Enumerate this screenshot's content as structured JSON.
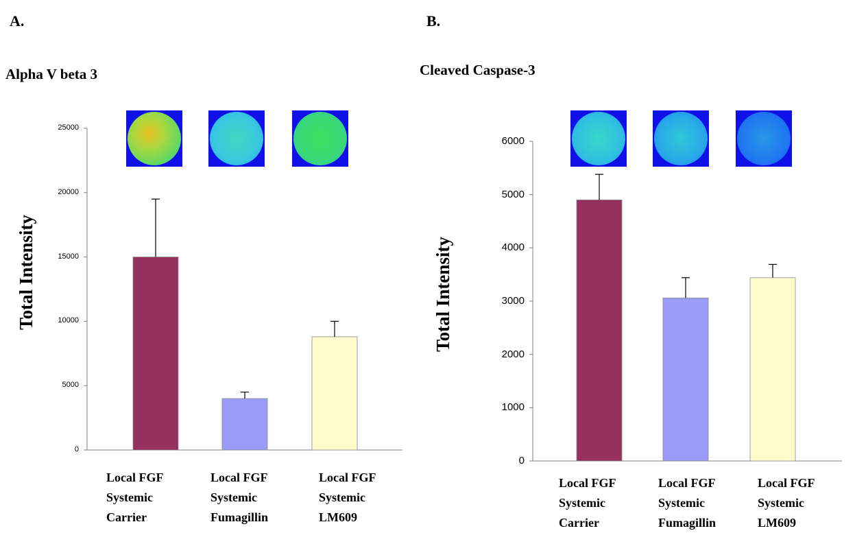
{
  "panels": [
    {
      "letter": "A.",
      "title": "Alpha V beta 3",
      "heatmaps": [
        "hm-yellow-green",
        "hm-cyan",
        "hm-green"
      ]
    },
    {
      "letter": "B.",
      "title": "Cleaved Caspase-3",
      "heatmaps": [
        "hm-cyan",
        "hm-cyan-blue",
        "hm-blue"
      ]
    }
  ],
  "colors": {
    "carrier": "#96305e",
    "fumagillin": "#9b9cf8",
    "lm609": "#fcfccc",
    "axis": "#808080"
  },
  "chart_data": [
    {
      "type": "bar",
      "title": "Alpha V beta 3",
      "ylabel": "Total Intensity",
      "xlabel": "",
      "ylim": [
        0,
        25000
      ],
      "yticks": [
        "0",
        "5000",
        "10000",
        "15000",
        "20000",
        "25000"
      ],
      "categories": [
        [
          "Local FGF",
          "Systemic",
          "Carrier"
        ],
        [
          "Local FGF",
          "Systemic",
          "Fumagillin"
        ],
        [
          "Local FGF",
          "Systemic",
          "LM609"
        ]
      ],
      "values": [
        15000,
        4000,
        8800
      ],
      "errors": [
        4500,
        500,
        1200
      ]
    },
    {
      "type": "bar",
      "title": "Cleaved Caspase-3",
      "ylabel": "Total Intensity",
      "xlabel": "",
      "ylim": [
        0,
        6000
      ],
      "yticks": [
        "0",
        "1000",
        "2000",
        "3000",
        "4000",
        "5000",
        "6000"
      ],
      "categories": [
        [
          "Local FGF",
          "Systemic",
          "Carrier"
        ],
        [
          "Local FGF",
          "Systemic",
          "Fumagillin"
        ],
        [
          "Local FGF",
          "Systemic",
          "LM609"
        ]
      ],
      "values": [
        4900,
        3060,
        3440
      ],
      "errors": [
        480,
        380,
        250
      ]
    }
  ]
}
